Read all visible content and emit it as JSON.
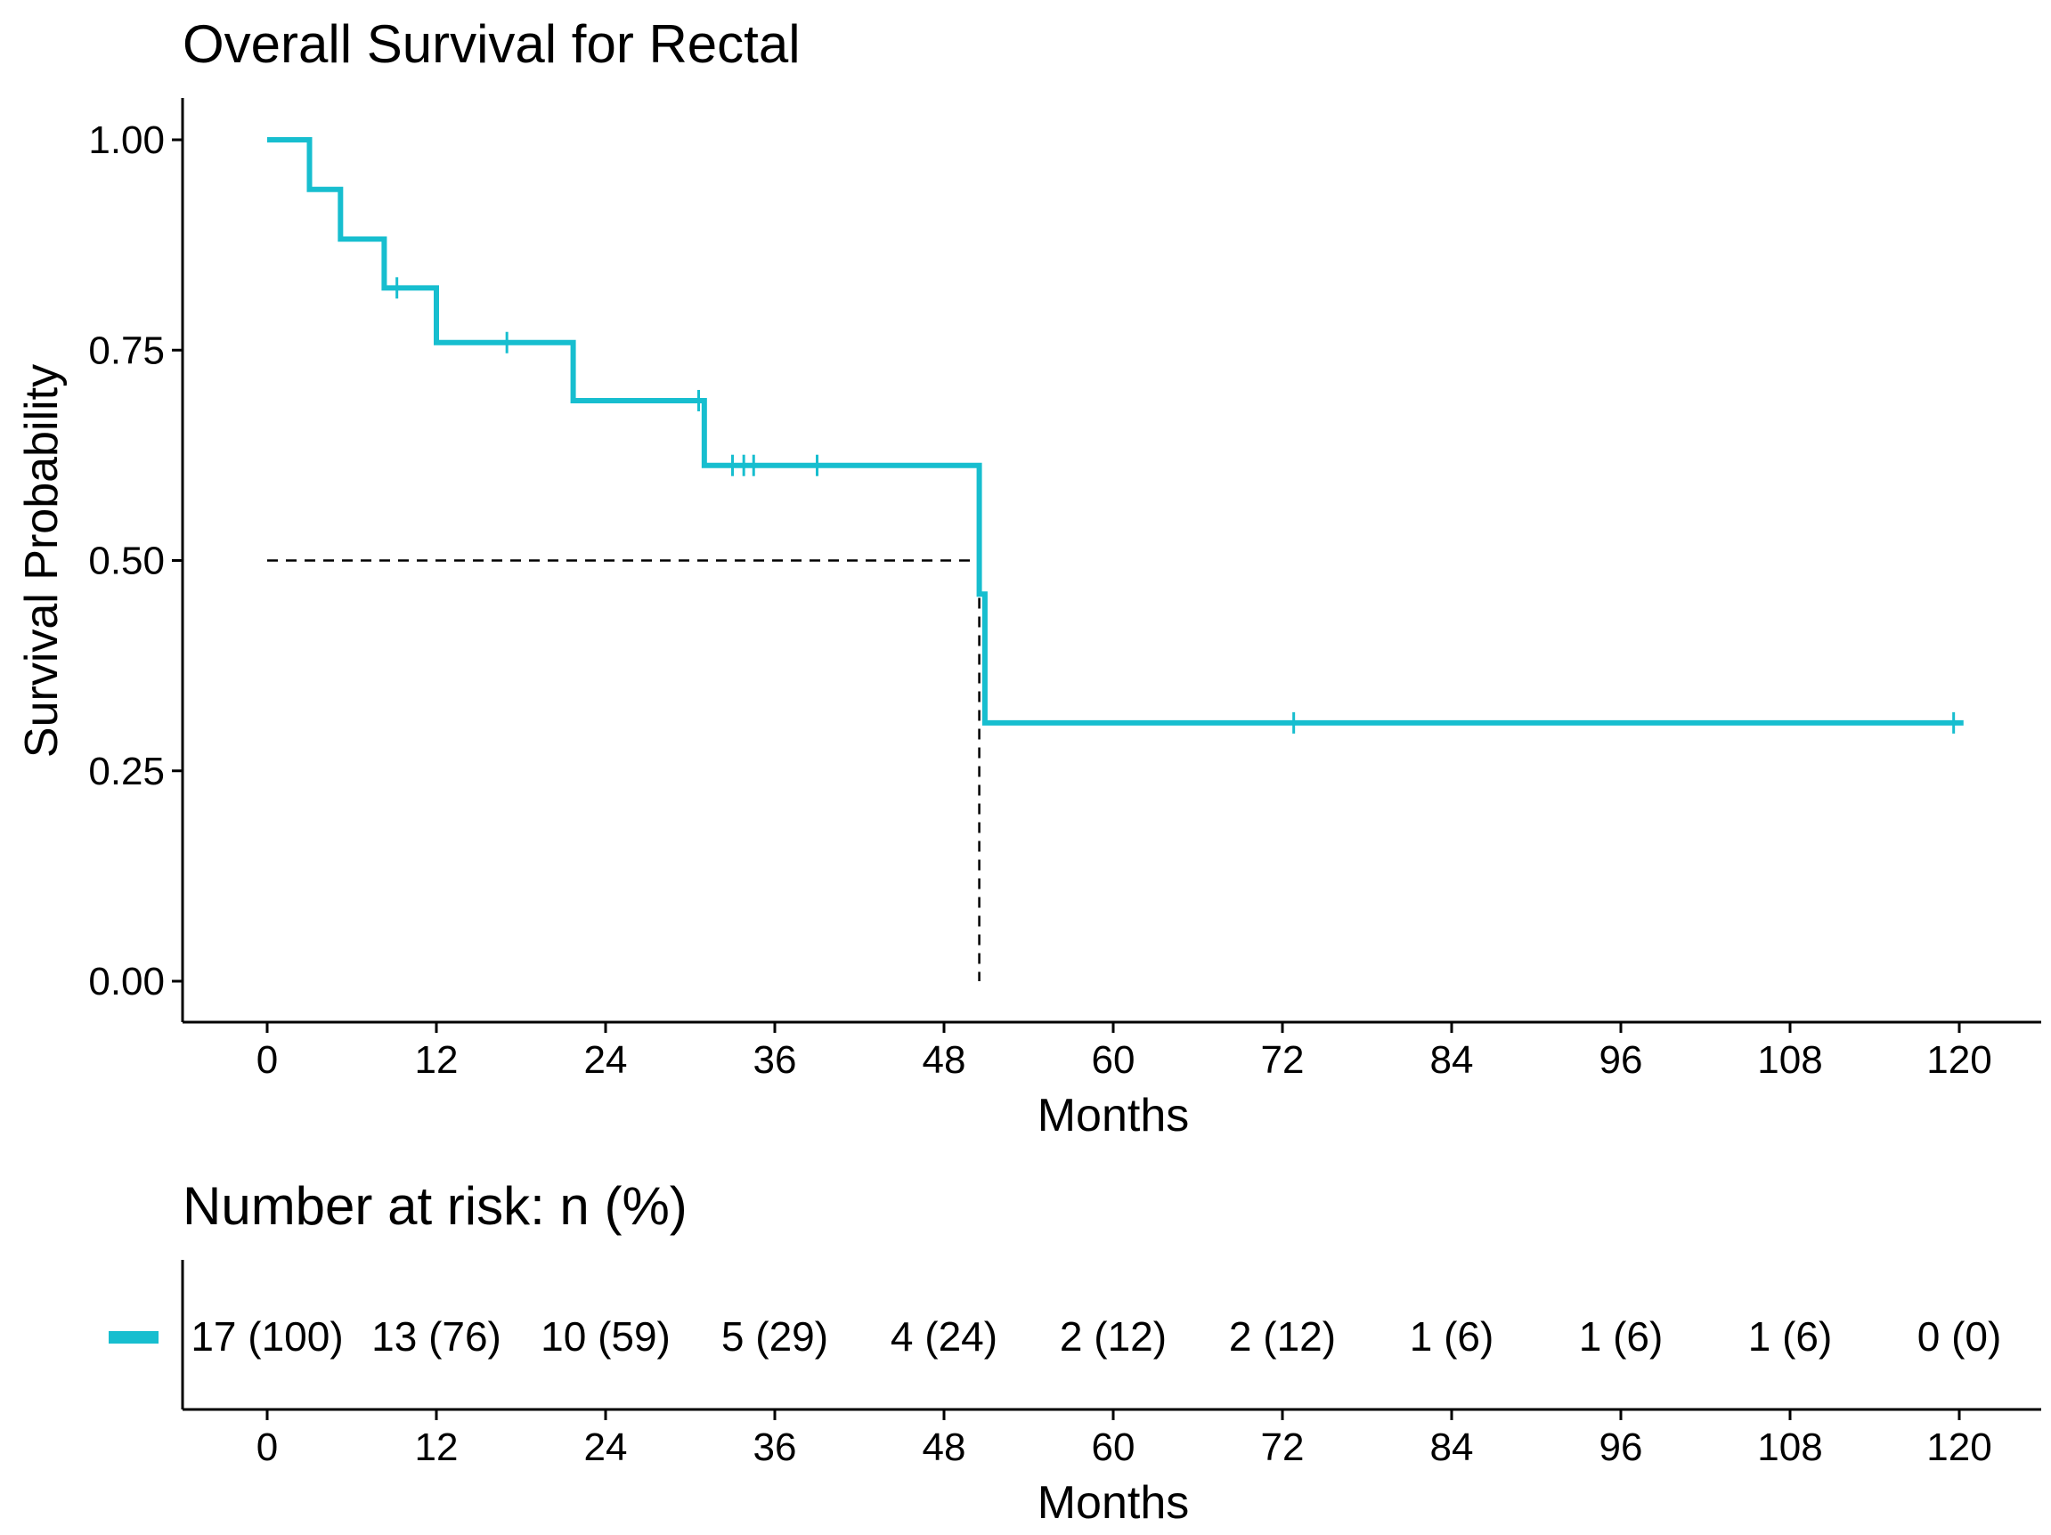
{
  "chart_data": {
    "type": "line",
    "subtype": "kaplan-meier",
    "title": "Overall Survival for Rectal",
    "xlabel": "Months",
    "ylabel": "Survival Probability",
    "xlim": [
      0,
      120
    ],
    "ylim": [
      0,
      1
    ],
    "x_ticks": [
      0,
      12,
      24,
      36,
      48,
      60,
      72,
      84,
      96,
      108,
      120
    ],
    "x_tick_labels": [
      "0",
      "12",
      "24",
      "36",
      "48",
      "60",
      "72",
      "84",
      "96",
      "108",
      "120"
    ],
    "y_ticks": [
      0,
      0.25,
      0.5,
      0.75,
      1.0
    ],
    "y_tick_labels": [
      "0.00",
      "0.25",
      "0.50",
      "0.75",
      "1.00"
    ],
    "grid": false,
    "series": [
      {
        "name": "Rectal",
        "color": "#17becf",
        "step_points": [
          {
            "x": 0,
            "y": 1.0
          },
          {
            "x": 3,
            "y": 0.941
          },
          {
            "x": 5.2,
            "y": 0.882
          },
          {
            "x": 8.3,
            "y": 0.824
          },
          {
            "x": 12,
            "y": 0.759
          },
          {
            "x": 21.7,
            "y": 0.69
          },
          {
            "x": 31,
            "y": 0.613
          },
          {
            "x": 50.5,
            "y": 0.46
          },
          {
            "x": 50.9,
            "y": 0.307
          }
        ],
        "end_x": 120.3,
        "censor_points": [
          {
            "x": 9.2,
            "y": 0.824
          },
          {
            "x": 17,
            "y": 0.759
          },
          {
            "x": 30.6,
            "y": 0.69
          },
          {
            "x": 33,
            "y": 0.613
          },
          {
            "x": 33.8,
            "y": 0.613
          },
          {
            "x": 34.5,
            "y": 0.613
          },
          {
            "x": 39,
            "y": 0.613
          },
          {
            "x": 72.8,
            "y": 0.307
          },
          {
            "x": 119.6,
            "y": 0.307
          }
        ]
      }
    ],
    "median_line": {
      "y": 0.5,
      "x": 50.5
    },
    "risk_table": {
      "title": "Number at risk: n (%)",
      "xlabel": "Months",
      "times": [
        0,
        12,
        24,
        36,
        48,
        60,
        72,
        84,
        96,
        108,
        120
      ],
      "values": [
        "17 (100)",
        "13 (76)",
        "10 (59)",
        "5 (29)",
        "4 (24)",
        "2 (12)",
        "2 (12)",
        "1 (6)",
        "1 (6)",
        "1 (6)",
        "0 (0)"
      ]
    }
  }
}
